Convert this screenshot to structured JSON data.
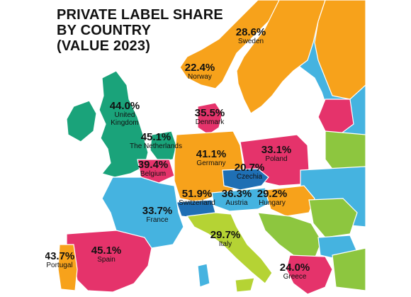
{
  "title": {
    "line1": "PRIVATE LABEL SHARE",
    "line2": "BY COUNTRY",
    "line3": "(VALUE 2023)"
  },
  "colors": {
    "sea": "#ffffff",
    "uk": "#1aa37a",
    "ireland": "#1aa37a",
    "sweden": "#f7a21b",
    "norway": "#f7a21b",
    "finland": "#f7a21b",
    "denmark": "#e5336b",
    "netherlands": "#1aa37a",
    "belgium": "#e5336b",
    "germany": "#f7a21b",
    "poland": "#e5336b",
    "czechia": "#1f6fb4",
    "austria": "#45b3e0",
    "switzerland": "#1f6fb4",
    "hungary": "#f7a21b",
    "france": "#45b3e0",
    "italy": "#b5d334",
    "spain": "#e5336b",
    "portugal": "#f7a21b",
    "greece": "#e5336b",
    "balkans": "#8dc63f",
    "baltics": "#e5336b",
    "russia": "#45b3e0",
    "other_green": "#8dc63f",
    "other_blue": "#45b3e0"
  },
  "countries": [
    {
      "name": "Sweden",
      "value": "28.6%"
    },
    {
      "name": "Norway",
      "value": "22.4%"
    },
    {
      "name": "United Kingdom",
      "value": "44.0%",
      "name_lines": [
        "United",
        "Kingdom"
      ]
    },
    {
      "name": "Denmark",
      "value": "35.5%"
    },
    {
      "name": "The Netherlands",
      "value": "45.1%"
    },
    {
      "name": "Belgium",
      "value": "39.4%"
    },
    {
      "name": "Germany",
      "value": "41.1%"
    },
    {
      "name": "Poland",
      "value": "33.1%"
    },
    {
      "name": "Czechia",
      "value": "20.7%"
    },
    {
      "name": "Switzerland",
      "value": "51.9%"
    },
    {
      "name": "Austria",
      "value": "36.3%"
    },
    {
      "name": "Hungary",
      "value": "29.2%"
    },
    {
      "name": "France",
      "value": "33.7%"
    },
    {
      "name": "Italy",
      "value": "29.7%"
    },
    {
      "name": "Portugal",
      "value": "43.7%"
    },
    {
      "name": "Spain",
      "value": "45.1%"
    },
    {
      "name": "Greece",
      "value": "24.0%"
    }
  ]
}
